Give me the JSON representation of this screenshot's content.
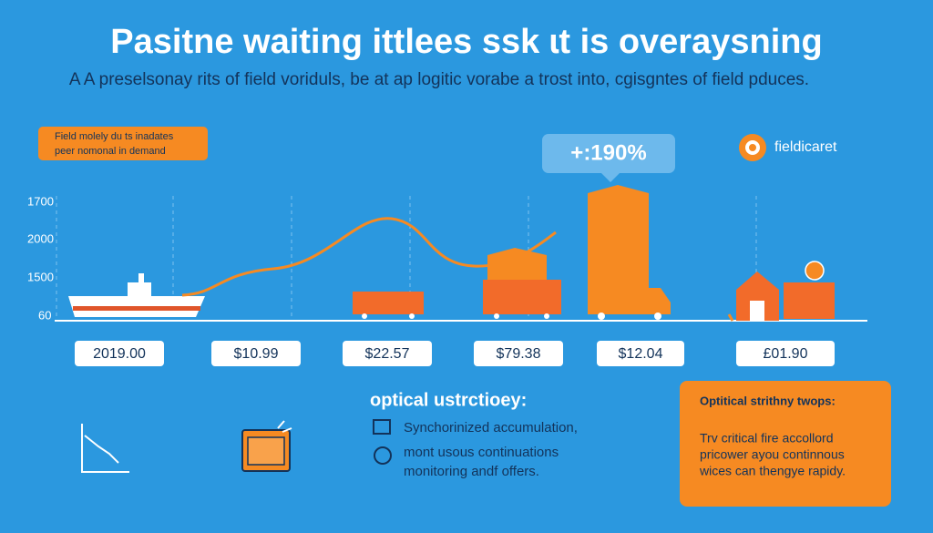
{
  "header": {
    "title": "Pasitne waiting ittlees ssk ɩt is overaysning",
    "subtitle": "A  A preselsonay rits of field voriduls, be at ap logitic vorabe a trost into, cgisgntes of field pduces."
  },
  "badge": {
    "lines": [
      "Field molely du ts inadates",
      "peer nomonal in demand"
    ]
  },
  "callout": "+:190%",
  "brand": {
    "name": "fieldicaret"
  },
  "axis_labels": [
    "1700",
    "2000",
    "1500",
    "60"
  ],
  "price_labels": [
    "2019.00",
    "$10.99",
    "$22.57",
    "$79.38",
    "$12.04",
    "£01.90"
  ],
  "strategy": {
    "title": "optical ustrctioey:",
    "items": [
      "Synchorinized accumulation,",
      "mont usous continuations",
      "monitoring andf offers."
    ]
  },
  "panel": {
    "title": "Optitical strithny twops:",
    "body": [
      "Trv critical fire accollord",
      "pricower ayou continnous",
      "wices can thengye rapidy."
    ]
  }
}
